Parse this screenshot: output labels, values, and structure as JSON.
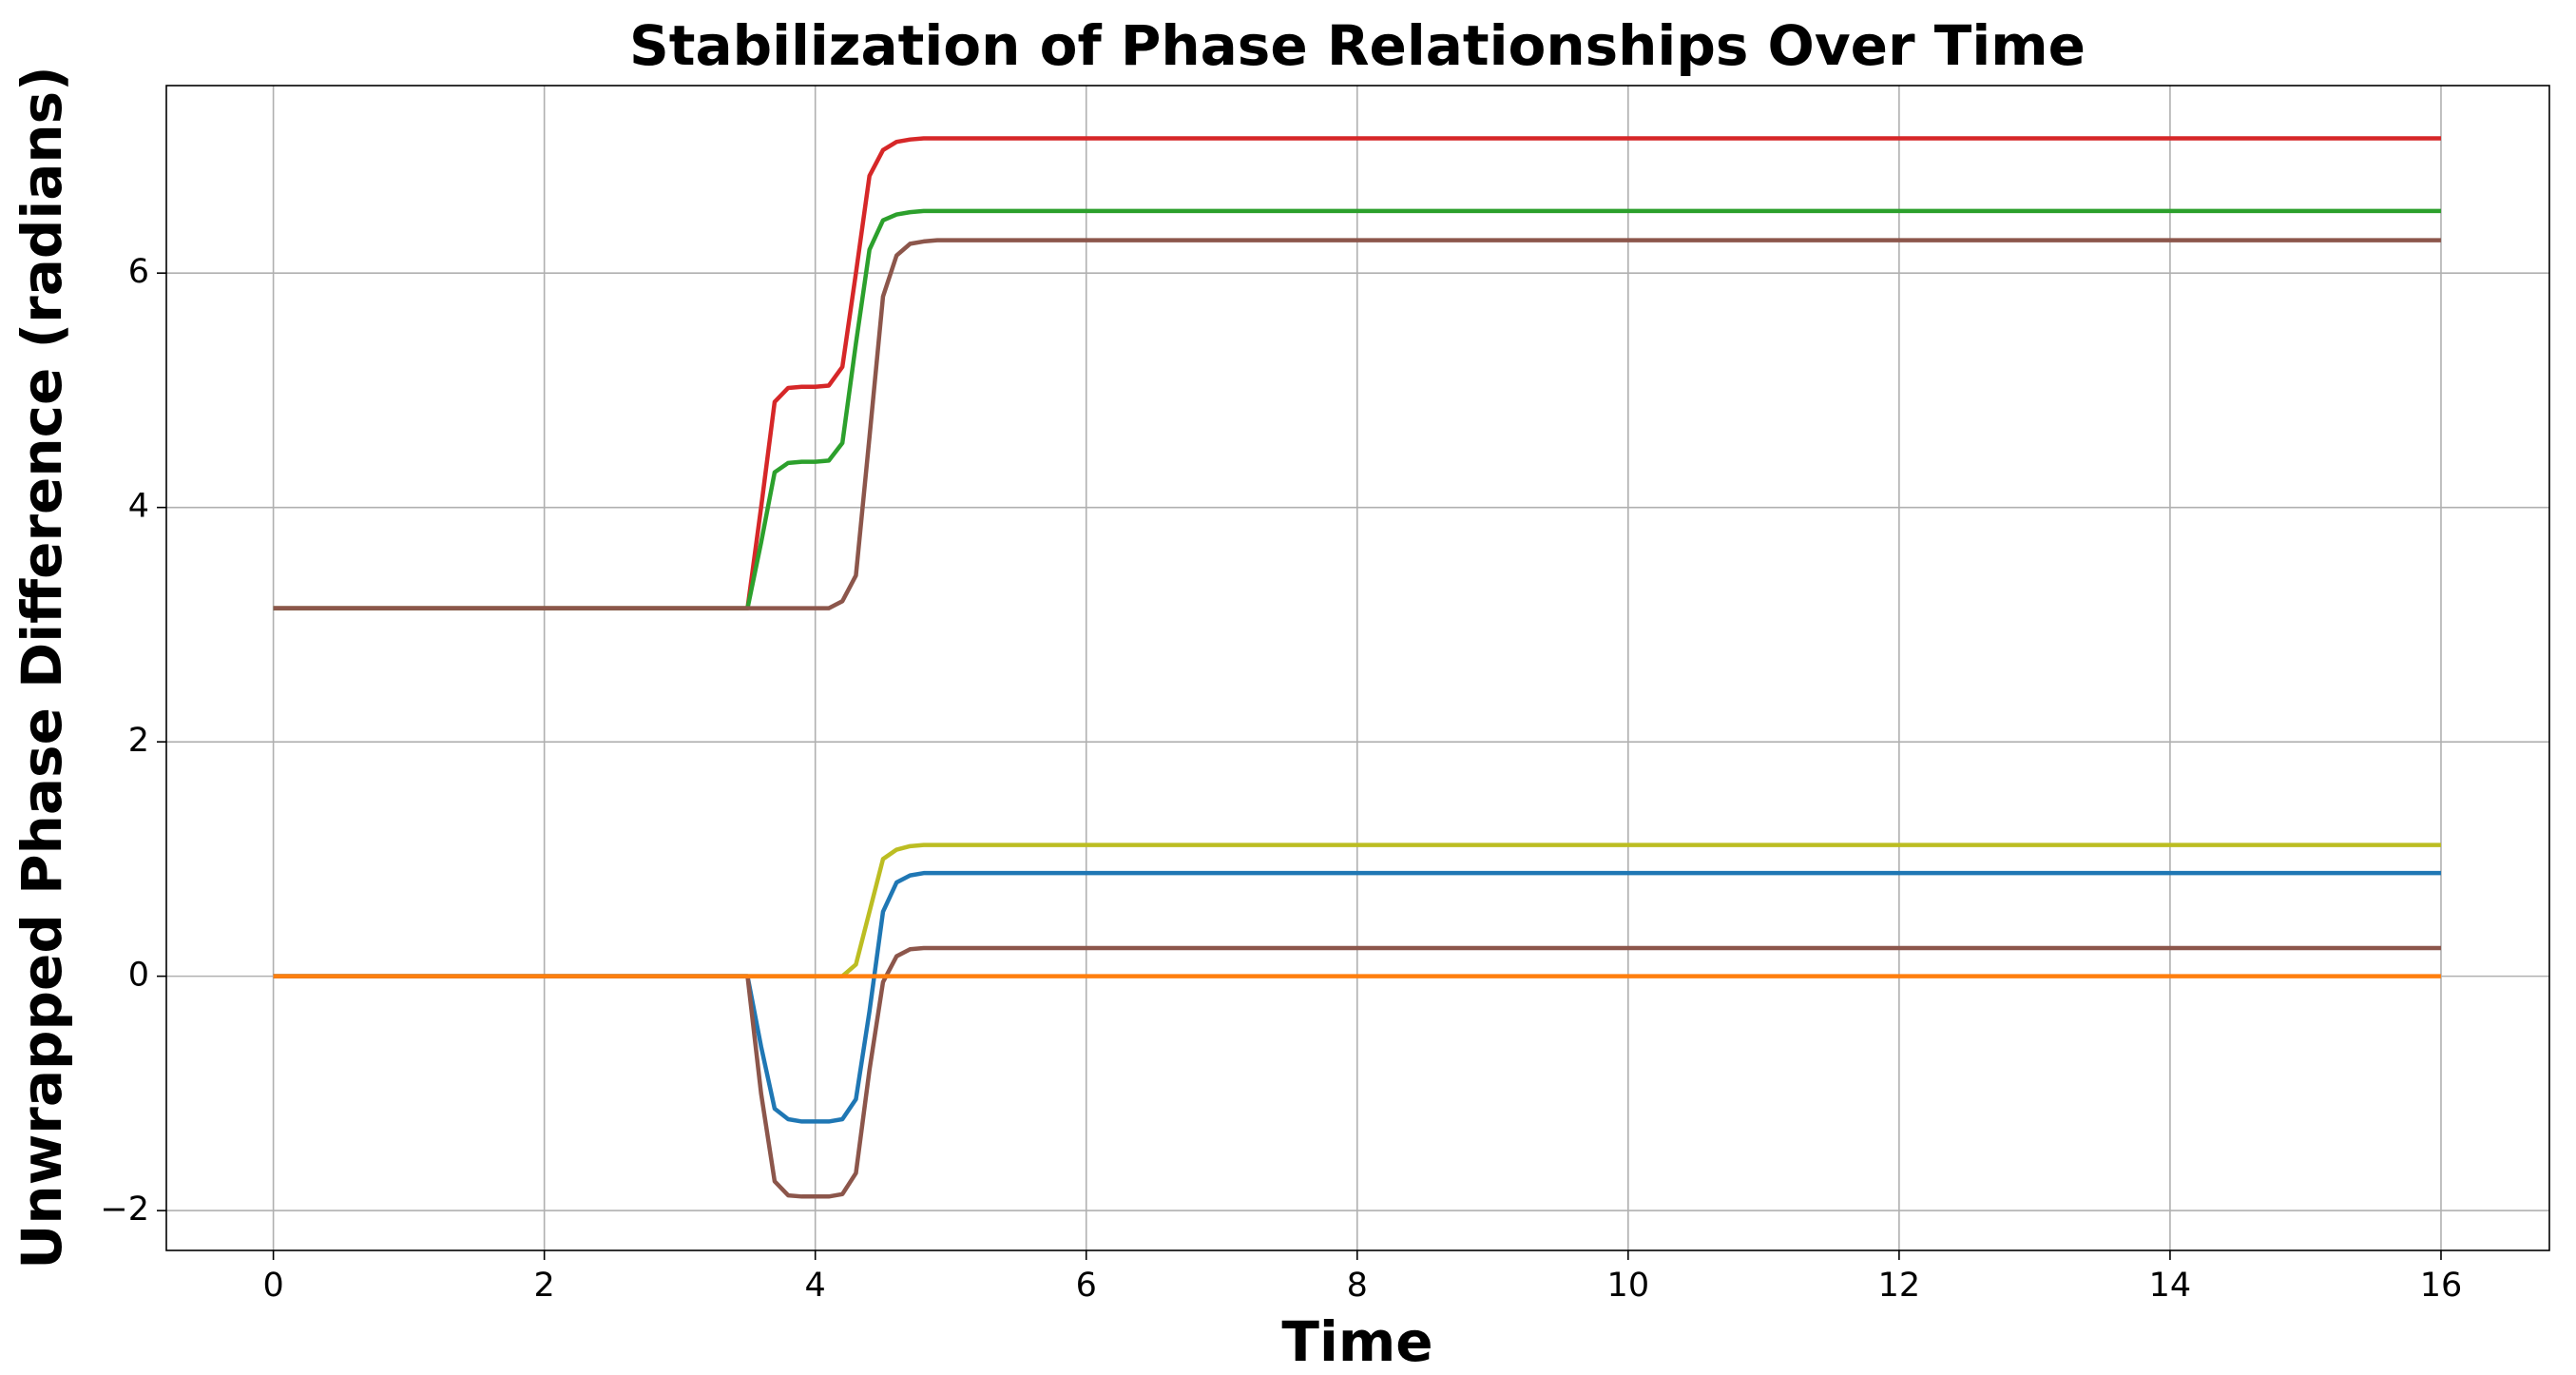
{
  "chart_data": {
    "type": "line",
    "title": "Stabilization of Phase Relationships Over Time",
    "xlabel": "Time",
    "ylabel": "Unwrapped Phase Difference (radians)",
    "x": [
      0,
      3.5,
      3.6,
      3.7,
      3.8,
      3.9,
      4.0,
      4.1,
      4.2,
      4.3,
      4.4,
      4.5,
      4.6,
      4.7,
      4.8,
      4.9,
      5.0,
      16
    ],
    "series": [
      {
        "color": "#d62728",
        "values": [
          3.14,
          3.14,
          4.0,
          4.9,
          5.02,
          5.03,
          5.03,
          5.04,
          5.2,
          6.0,
          6.83,
          7.05,
          7.12,
          7.14,
          7.15,
          7.15,
          7.15,
          7.15
        ]
      },
      {
        "color": "#2ca02c",
        "values": [
          3.14,
          3.14,
          3.7,
          4.3,
          4.38,
          4.39,
          4.39,
          4.4,
          4.55,
          5.4,
          6.2,
          6.45,
          6.5,
          6.52,
          6.53,
          6.53,
          6.53,
          6.53
        ]
      },
      {
        "color": "#8c564b",
        "values": [
          3.14,
          3.14,
          3.14,
          3.14,
          3.14,
          3.14,
          3.14,
          3.14,
          3.2,
          3.42,
          4.6,
          5.8,
          6.15,
          6.25,
          6.27,
          6.28,
          6.28,
          6.28
        ]
      },
      {
        "color": "#bcbd22",
        "values": [
          0,
          0,
          0,
          0,
          0,
          0,
          0,
          0,
          0,
          0.1,
          0.55,
          1.0,
          1.08,
          1.11,
          1.12,
          1.12,
          1.12,
          1.12
        ]
      },
      {
        "color": "#1f77b4",
        "values": [
          0,
          0,
          -0.6,
          -1.13,
          -1.22,
          -1.24,
          -1.24,
          -1.24,
          -1.22,
          -1.05,
          -0.3,
          0.55,
          0.8,
          0.86,
          0.88,
          0.88,
          0.88,
          0.88
        ]
      },
      {
        "color": "#8c564b",
        "values": [
          0,
          0,
          -1.0,
          -1.75,
          -1.87,
          -1.88,
          -1.88,
          -1.88,
          -1.86,
          -1.68,
          -0.8,
          -0.05,
          0.17,
          0.23,
          0.24,
          0.24,
          0.24,
          0.24
        ]
      },
      {
        "color": "#ff7f0e",
        "values": [
          0,
          0,
          0,
          0,
          0,
          0,
          0,
          0,
          0,
          0,
          0,
          0,
          0,
          0,
          0,
          0,
          0,
          0
        ]
      }
    ],
    "xlim": [
      -0.79,
      16.8
    ],
    "ylim": [
      -2.34,
      7.6
    ],
    "xticks": [
      0,
      2,
      4,
      6,
      8,
      10,
      12,
      14,
      16
    ],
    "yticks": [
      {
        "value": -2,
        "label": "−2"
      },
      0,
      2,
      4,
      6
    ],
    "grid": true
  }
}
